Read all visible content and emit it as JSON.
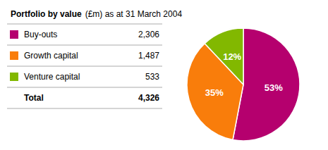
{
  "chart_data": {
    "type": "pie",
    "title": "Portfolio by value",
    "subtitle": "(£m) as at 31 March 2004",
    "categories": [
      "Buy-outs",
      "Growth capital",
      "Venture capital"
    ],
    "values": [
      53,
      35,
      12
    ],
    "value_labels": [
      "53%",
      "35%",
      "12%"
    ],
    "colors": [
      "#b5006e",
      "#f97d0b",
      "#82b800"
    ],
    "data_labels": true,
    "table": {
      "values": [
        2306,
        1487,
        533
      ],
      "value_labels": [
        "2,306",
        "1,487",
        "533"
      ],
      "total": {
        "label": "Total",
        "value": 4326,
        "value_label": "4,326"
      }
    }
  }
}
